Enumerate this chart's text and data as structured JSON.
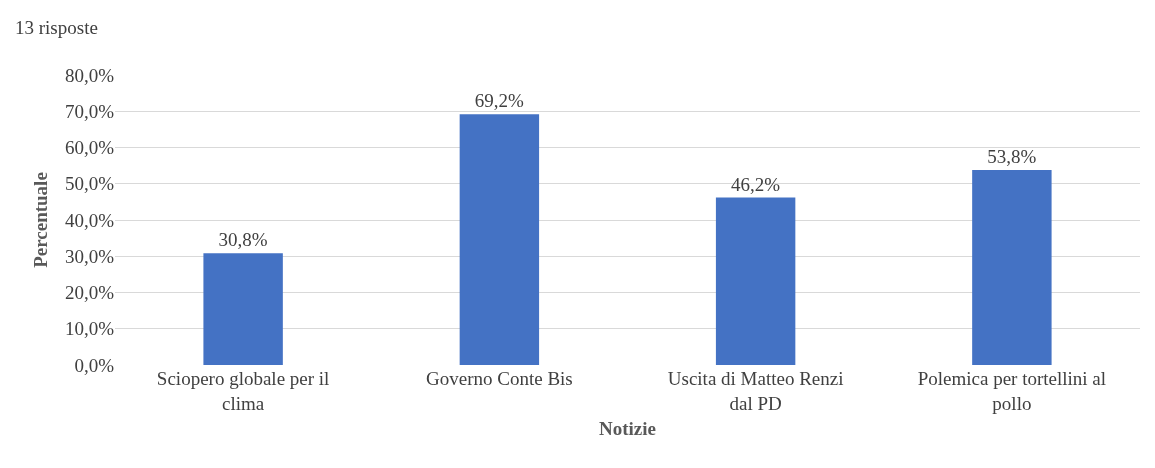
{
  "chart_data": {
    "type": "bar",
    "subtitle": "13 risposte",
    "xlabel": "Notizie",
    "ylabel": "Percentuale",
    "categories": [
      "Sciopero globale per il clima",
      "Governo Conte Bis",
      "Uscita di Matteo Renzi dal PD",
      "Polemica per tortellini al pollo"
    ],
    "values": [
      30.8,
      69.2,
      46.2,
      53.8
    ],
    "value_labels": [
      "30,8%",
      "69,2%",
      "46,2%",
      "53,8%"
    ],
    "color": "#4472c4",
    "ylim": [
      0,
      80
    ],
    "yticks": [
      {
        "value": 0,
        "label": "0,0%"
      },
      {
        "value": 10,
        "label": "10,0%"
      },
      {
        "value": 20,
        "label": "20,0%"
      },
      {
        "value": 30,
        "label": "30,0%"
      },
      {
        "value": 40,
        "label": "40,0%"
      },
      {
        "value": 50,
        "label": "50,0%"
      },
      {
        "value": 60,
        "label": "60,0%"
      },
      {
        "value": 70,
        "label": "70,0%"
      },
      {
        "value": 80,
        "label": "80,0%"
      }
    ],
    "grid": "y"
  }
}
